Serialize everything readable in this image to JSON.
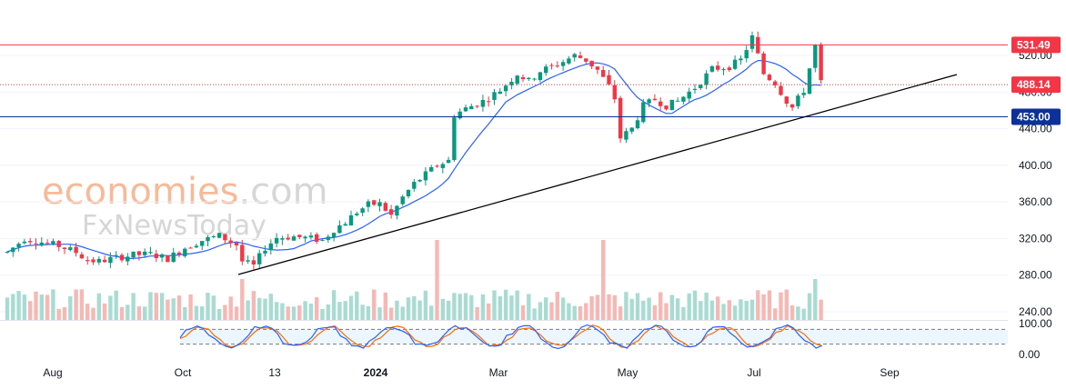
{
  "chart_data": {
    "type": "candlestick",
    "x_ticks": [
      "Aug",
      "Oct",
      "13",
      "2024",
      "Mar",
      "May",
      "Jul",
      "Sep"
    ],
    "y_ticks": [
      240,
      280,
      320,
      360,
      400,
      440,
      480,
      520
    ],
    "ylim": [
      232,
      552
    ],
    "horizontal_levels": [
      {
        "value": 531.49,
        "label": "531.49",
        "color": "#f23645",
        "style": "solid"
      },
      {
        "value": 488.14,
        "label": "488.14",
        "color": "#f23645",
        "style": "dotted"
      },
      {
        "value": 453.0,
        "label": "453.00",
        "color": "#0c3299",
        "style": "solid"
      }
    ],
    "trendline": {
      "from": {
        "week": 43,
        "price": 280
      },
      "to": {
        "week": 109,
        "price": 495
      }
    },
    "weeks_visible": 106,
    "ohlc_sample_note": "",
    "price_anchors": [
      [
        0,
        305
      ],
      [
        3,
        320
      ],
      [
        6,
        316
      ],
      [
        9,
        312
      ],
      [
        12,
        305
      ],
      [
        14,
        296
      ],
      [
        16,
        295
      ],
      [
        19,
        299
      ],
      [
        22,
        302
      ],
      [
        25,
        303
      ],
      [
        28,
        298
      ],
      [
        31,
        310
      ],
      [
        34,
        318
      ],
      [
        37,
        323
      ],
      [
        40,
        313
      ],
      [
        41,
        295
      ],
      [
        43,
        290
      ],
      [
        45,
        310
      ],
      [
        47,
        321
      ],
      [
        50,
        322
      ],
      [
        53,
        320
      ],
      [
        55,
        318
      ],
      [
        57,
        330
      ],
      [
        59,
        338
      ],
      [
        61,
        349
      ],
      [
        63,
        357
      ],
      [
        65,
        358
      ],
      [
        67,
        345
      ],
      [
        69,
        365
      ],
      [
        71,
        380
      ],
      [
        73,
        390
      ],
      [
        75,
        400
      ],
      [
        77,
        405
      ],
      [
        78,
        455
      ],
      [
        80,
        462
      ],
      [
        83,
        470
      ],
      [
        86,
        482
      ],
      [
        89,
        500
      ],
      [
        91,
        492
      ],
      [
        93,
        503
      ],
      [
        96,
        510
      ],
      [
        99,
        520
      ],
      [
        101,
        515
      ],
      [
        103,
        504
      ],
      [
        105,
        486
      ],
      [
        106,
        473
      ],
      [
        107,
        430
      ],
      [
        109,
        440
      ],
      [
        111,
        465
      ],
      [
        113,
        472
      ],
      [
        115,
        465
      ],
      [
        117,
        470
      ],
      [
        120,
        485
      ],
      [
        123,
        505
      ],
      [
        126,
        508
      ],
      [
        128,
        515
      ],
      [
        130,
        540
      ],
      [
        132,
        500
      ],
      [
        134,
        490
      ],
      [
        136,
        470
      ],
      [
        137,
        463
      ],
      [
        139,
        482
      ],
      [
        141,
        530
      ],
      [
        142,
        490
      ]
    ],
    "stochastic": {
      "upper": 80,
      "lower": 20,
      "axis_labels": [
        "100.00",
        "0.00"
      ]
    }
  }
}
